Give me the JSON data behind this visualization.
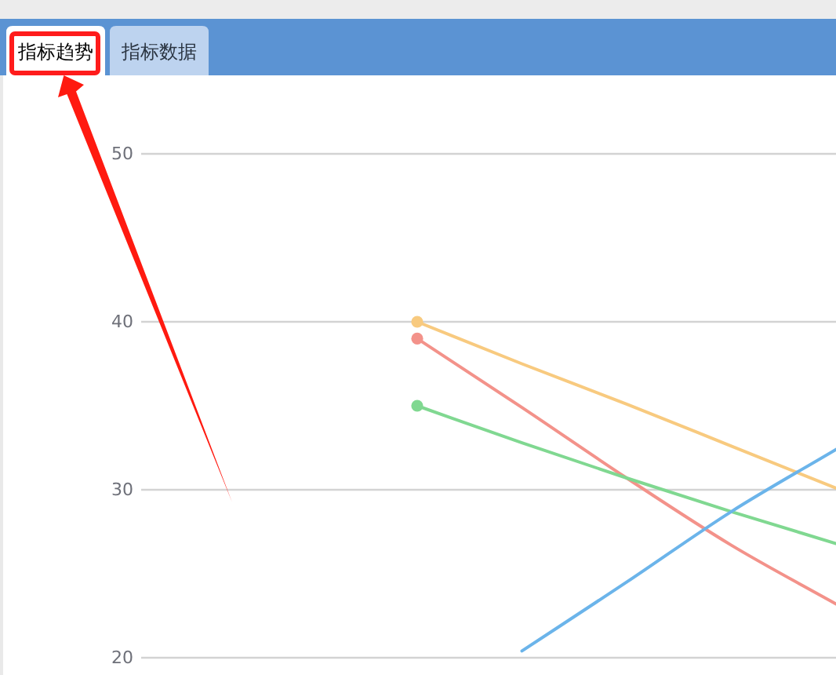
{
  "chart_data": {
    "type": "line",
    "annotations": [
      "指标趋势",
      "指标数据"
    ],
    "categories": [
      null,
      null,
      null,
      null,
      null
    ],
    "series": [
      {
        "color": "#f8ca7f",
        "values": [
          40,
          37.5,
          35.1,
          32.6,
          30.1
        ]
      },
      {
        "color": "#f3928a",
        "values": [
          39.0,
          34.9,
          30.7,
          26.7,
          23.2
        ]
      },
      {
        "color": "#80d891",
        "values": [
          35.0,
          32.8,
          30.7,
          28.7,
          26.8
        ]
      },
      {
        "color": "#6bb4ea",
        "values": [
          null,
          20.4,
          24.5,
          28.7,
          32.4
        ]
      },
      {
        "type": "scatter",
        "color": "#f8ca7f",
        "values": [
          40,
          null,
          null,
          null,
          null
        ]
      },
      {
        "type": "scatter",
        "color": "#f3928a",
        "values": [
          39.0,
          null,
          null,
          null,
          null
        ]
      },
      {
        "type": "scatter",
        "color": "#80d891",
        "values": [
          35.0,
          null,
          null,
          null,
          null
        ]
      }
    ],
    "ylim": [
      20,
      50
    ],
    "yticks": [
      20,
      30,
      40,
      50
    ],
    "grid": "y",
    "tick_labels": "y"
  }
}
